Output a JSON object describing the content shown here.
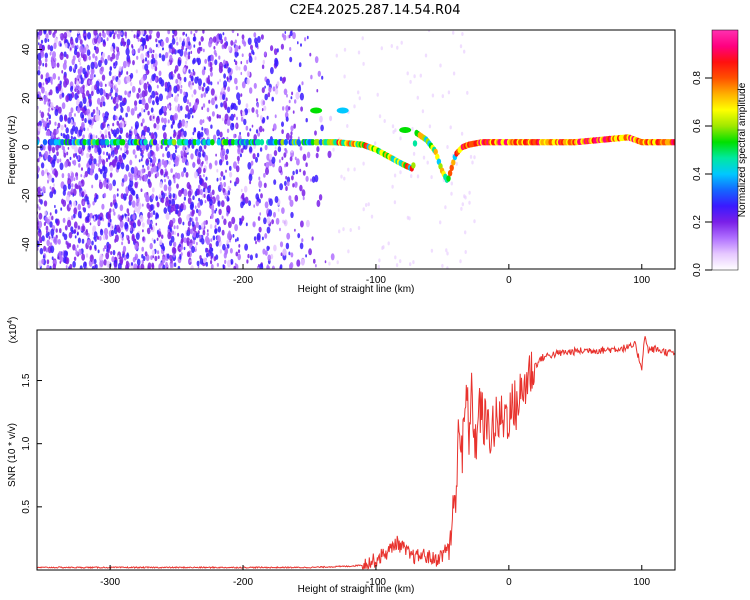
{
  "title": "C2E4.2025.287.14.54.R04",
  "colors": {
    "trace": "#e8322d",
    "scatter": "#7a1fe8",
    "band_low": "#3a1aff",
    "band_mid": "#00e070",
    "band_high": "#ff2020"
  },
  "colormap": [
    "#ffffff",
    "#e6c8ff",
    "#b070ff",
    "#7a1fe8",
    "#3a1aff",
    "#1466ff",
    "#00c8ff",
    "#00e8a0",
    "#00e000",
    "#a0e800",
    "#ffff00",
    "#ffb000",
    "#ff5000",
    "#ff1010",
    "#ff0080",
    "#ff30b0"
  ],
  "chart_data": [
    {
      "type": "heatmap",
      "title": "",
      "xlabel": "Height of straight line (km)",
      "ylabel": "Frequency (Hz)",
      "xlim": [
        -355,
        125
      ],
      "ylim": [
        -50,
        48
      ],
      "xticks": [
        -300,
        -200,
        -100,
        0,
        100
      ],
      "yticks": [
        -40,
        -20,
        0,
        20,
        40
      ],
      "colorbar": {
        "label": "Normalized spectral amplitude",
        "range": [
          0,
          1
        ],
        "ticks": [
          "0.0",
          "0.2",
          "0.4",
          "0.6",
          "0.8"
        ],
        "tick_values": [
          0,
          0.2,
          0.4,
          0.6,
          0.8
        ]
      },
      "band_track": [
        [
          -355,
          2
        ],
        [
          -300,
          2
        ],
        [
          -250,
          2
        ],
        [
          -200,
          2
        ],
        [
          -150,
          2
        ],
        [
          -130,
          2
        ],
        [
          -110,
          1
        ],
        [
          -100,
          -1
        ],
        [
          -90,
          -4
        ],
        [
          -80,
          -7
        ],
        [
          -72,
          -9
        ],
        [
          -70,
          6
        ],
        [
          -62,
          3
        ],
        [
          -55,
          -2
        ],
        [
          -52,
          -7
        ],
        [
          -50,
          -10
        ],
        [
          -46,
          -14
        ],
        [
          -40,
          -3
        ],
        [
          -35,
          0
        ],
        [
          -30,
          1
        ],
        [
          -20,
          2
        ],
        [
          0,
          2
        ],
        [
          50,
          2
        ],
        [
          90,
          4
        ],
        [
          100,
          2
        ],
        [
          125,
          2
        ]
      ],
      "side_blobs": [
        {
          "x": -145,
          "y": 15,
          "amp": 0.55
        },
        {
          "x": -125,
          "y": 15,
          "amp": 0.4
        },
        {
          "x": -78,
          "y": 7,
          "amp": 0.5
        }
      ]
    },
    {
      "type": "line",
      "title": "",
      "xlabel": "Height of straight line (km)",
      "ylabel": "SNR (10 * v/v)",
      "y_multiplier_label": "(x10",
      "y_multiplier_exp": "4",
      "y_multiplier_close": ")",
      "xlim": [
        -355,
        125
      ],
      "ylim": [
        0,
        1.9
      ],
      "xticks": [
        -300,
        -200,
        -100,
        0,
        100
      ],
      "yticks": [
        0.5,
        1.0,
        1.5
      ],
      "ytick_labels": [
        "0.5",
        "1.0",
        "1.5"
      ],
      "series": [
        {
          "x": [
            -355,
            -300,
            -250,
            -200,
            -150,
            -120,
            -110,
            -100,
            -95,
            -90,
            -85,
            -80,
            -75,
            -70,
            -65,
            -60,
            -55,
            -50,
            -45,
            -40,
            -38,
            -35,
            -32,
            -30,
            -28,
            -25,
            -22,
            -20,
            -15,
            -10,
            -5,
            0,
            5,
            10,
            15,
            20,
            25,
            30,
            40,
            50,
            60,
            70,
            80,
            90,
            95,
            100,
            102,
            105,
            110,
            120,
            125
          ],
          "values": [
            0.02,
            0.02,
            0.02,
            0.02,
            0.02,
            0.03,
            0.04,
            0.08,
            0.12,
            0.15,
            0.22,
            0.18,
            0.12,
            0.1,
            0.12,
            0.1,
            0.08,
            0.12,
            0.2,
            0.55,
            1.2,
            0.9,
            1.4,
            1.1,
            1.35,
            1.0,
            1.3,
            1.2,
            1.1,
            1.15,
            1.2,
            1.25,
            1.3,
            1.4,
            1.55,
            1.62,
            1.68,
            1.7,
            1.72,
            1.73,
            1.74,
            1.74,
            1.75,
            1.76,
            1.78,
            1.6,
            1.85,
            1.74,
            1.75,
            1.72,
            1.72
          ]
        }
      ]
    }
  ]
}
